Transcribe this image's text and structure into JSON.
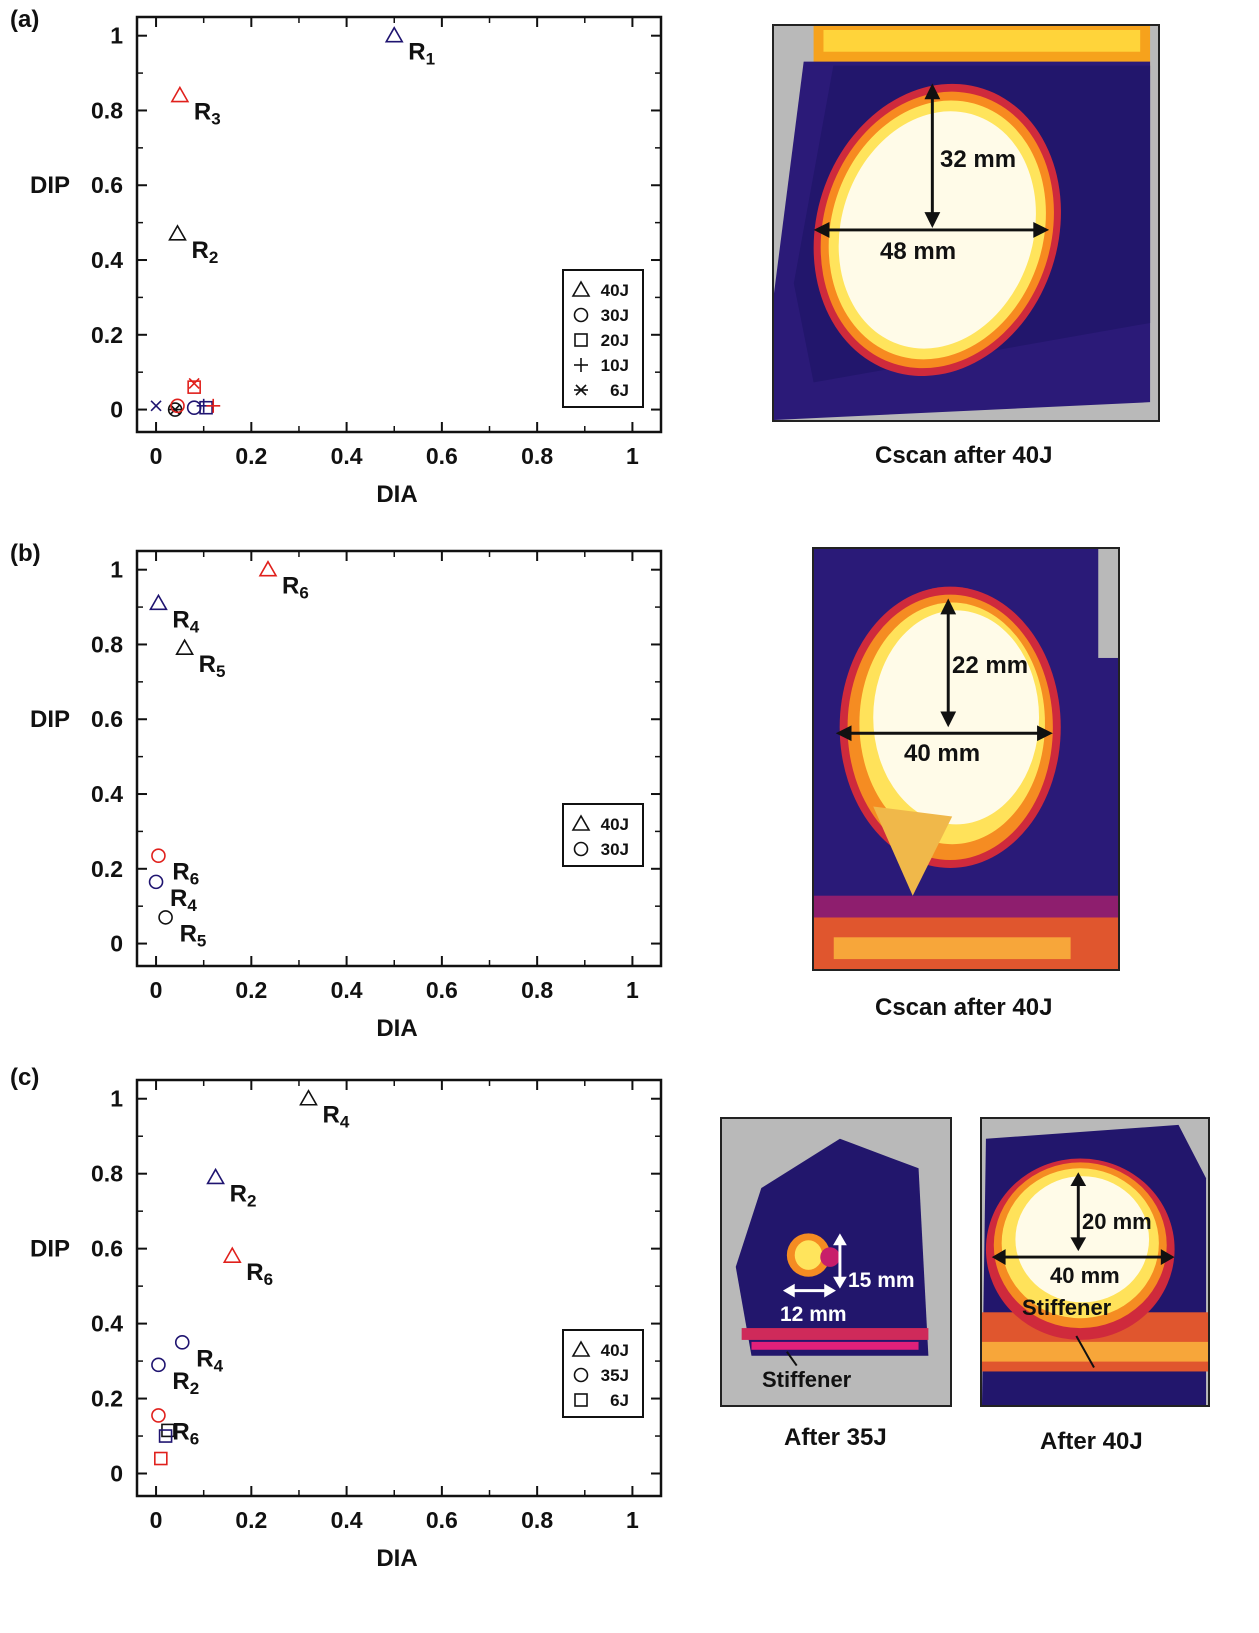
{
  "panels": {
    "a": {
      "label": "(a)",
      "caption": "Cscan after 40J",
      "dim_v": "32 mm",
      "dim_h": "48 mm"
    },
    "b": {
      "label": "(b)",
      "caption": "Cscan after 40J",
      "dim_v": "22 mm",
      "dim_h": "40 mm"
    },
    "c": {
      "label": "(c)",
      "caption_left": "After 35J",
      "caption_right": "After 40J",
      "left_dim_v": "15 mm",
      "left_dim_h": "12 mm",
      "left_note": "Stiffener",
      "right_dim_v": "20 mm",
      "right_dim_h": "40 mm",
      "right_note": "Stiffener"
    }
  },
  "colors": {
    "black": "#111111",
    "red": "#e0201c",
    "navy": "#1f1470"
  },
  "chart_data": [
    {
      "type": "scatter",
      "panel": "a",
      "xlabel": "DIA",
      "ylabel": "DIP",
      "xlim": [
        -0.04,
        1.06
      ],
      "ylim": [
        -0.06,
        1.05
      ],
      "xticks": [
        "0",
        "0.2",
        "0.4",
        "0.6",
        "0.8",
        "1"
      ],
      "yticks": [
        "0",
        "0.2",
        "0.4",
        "0.6",
        "0.8",
        "1"
      ],
      "legend": [
        "40J",
        "30J",
        "20J",
        "10J",
        "6J"
      ],
      "legend_markers": [
        "triangle",
        "circle",
        "square",
        "plus",
        "asterisk"
      ],
      "points": [
        {
          "x": 0.5,
          "y": 1.0,
          "marker": "triangle",
          "color": "navy",
          "label": "R",
          "sub": "1"
        },
        {
          "x": 0.05,
          "y": 0.84,
          "marker": "triangle",
          "color": "red",
          "label": "R",
          "sub": "3"
        },
        {
          "x": 0.045,
          "y": 0.47,
          "marker": "triangle",
          "color": "black",
          "label": "R",
          "sub": "2"
        },
        {
          "x": 0.0,
          "y": 0.01,
          "marker": "cross",
          "color": "navy"
        },
        {
          "x": 0.04,
          "y": 0.0,
          "marker": "circle",
          "color": "black"
        },
        {
          "x": 0.04,
          "y": 0.0,
          "marker": "asterisk",
          "color": "black"
        },
        {
          "x": 0.045,
          "y": 0.01,
          "marker": "circle",
          "color": "red"
        },
        {
          "x": 0.08,
          "y": 0.005,
          "marker": "circle",
          "color": "navy"
        },
        {
          "x": 0.08,
          "y": 0.06,
          "marker": "square",
          "color": "red"
        },
        {
          "x": 0.08,
          "y": 0.07,
          "marker": "cross",
          "color": "red"
        },
        {
          "x": 0.105,
          "y": 0.005,
          "marker": "square",
          "color": "navy"
        },
        {
          "x": 0.1,
          "y": 0.01,
          "marker": "plus",
          "color": "navy"
        },
        {
          "x": 0.12,
          "y": 0.01,
          "marker": "plus",
          "color": "red"
        }
      ]
    },
    {
      "type": "scatter",
      "panel": "b",
      "xlabel": "DIA",
      "ylabel": "DIP",
      "xlim": [
        -0.04,
        1.06
      ],
      "ylim": [
        -0.06,
        1.05
      ],
      "xticks": [
        "0",
        "0.2",
        "0.4",
        "0.6",
        "0.8",
        "1"
      ],
      "yticks": [
        "0",
        "0.2",
        "0.4",
        "0.6",
        "0.8",
        "1"
      ],
      "legend": [
        "40J",
        "30J"
      ],
      "legend_markers": [
        "triangle",
        "circle"
      ],
      "points": [
        {
          "x": 0.235,
          "y": 1.0,
          "marker": "triangle",
          "color": "red",
          "label": "R",
          "sub": "6"
        },
        {
          "x": 0.005,
          "y": 0.91,
          "marker": "triangle",
          "color": "navy",
          "label": "R",
          "sub": "4"
        },
        {
          "x": 0.06,
          "y": 0.79,
          "marker": "triangle",
          "color": "black",
          "label": "R",
          "sub": "5"
        },
        {
          "x": 0.005,
          "y": 0.235,
          "marker": "circle",
          "color": "red",
          "label": "R",
          "sub": "6"
        },
        {
          "x": 0.0,
          "y": 0.165,
          "marker": "circle",
          "color": "navy",
          "label": "R",
          "sub": "4"
        },
        {
          "x": 0.02,
          "y": 0.07,
          "marker": "circle",
          "color": "black",
          "label": "R",
          "sub": "5"
        }
      ]
    },
    {
      "type": "scatter",
      "panel": "c",
      "xlabel": "DIA",
      "ylabel": "DIP",
      "xlim": [
        -0.04,
        1.06
      ],
      "ylim": [
        -0.06,
        1.05
      ],
      "xticks": [
        "0",
        "0.2",
        "0.4",
        "0.6",
        "0.8",
        "1"
      ],
      "yticks": [
        "0",
        "0.2",
        "0.4",
        "0.6",
        "0.8",
        "1"
      ],
      "legend": [
        "40J",
        "35J",
        "6J"
      ],
      "legend_markers": [
        "triangle",
        "circle",
        "square"
      ],
      "points": [
        {
          "x": 0.32,
          "y": 1.0,
          "marker": "triangle",
          "color": "black",
          "label": "R",
          "sub": "4"
        },
        {
          "x": 0.125,
          "y": 0.79,
          "marker": "triangle",
          "color": "navy",
          "label": "R",
          "sub": "2"
        },
        {
          "x": 0.16,
          "y": 0.58,
          "marker": "triangle",
          "color": "red",
          "label": "R",
          "sub": "6"
        },
        {
          "x": 0.055,
          "y": 0.35,
          "marker": "circle",
          "color": "navy",
          "label": "R",
          "sub": "4"
        },
        {
          "x": 0.005,
          "y": 0.29,
          "marker": "circle",
          "color": "navy",
          "label": "R",
          "sub": "2"
        },
        {
          "x": 0.005,
          "y": 0.155,
          "marker": "circle",
          "color": "red",
          "label": "R",
          "sub": "6"
        },
        {
          "x": 0.025,
          "y": 0.115,
          "marker": "square",
          "color": "black"
        },
        {
          "x": 0.02,
          "y": 0.1,
          "marker": "square",
          "color": "navy"
        },
        {
          "x": 0.01,
          "y": 0.04,
          "marker": "square",
          "color": "red"
        }
      ]
    }
  ]
}
